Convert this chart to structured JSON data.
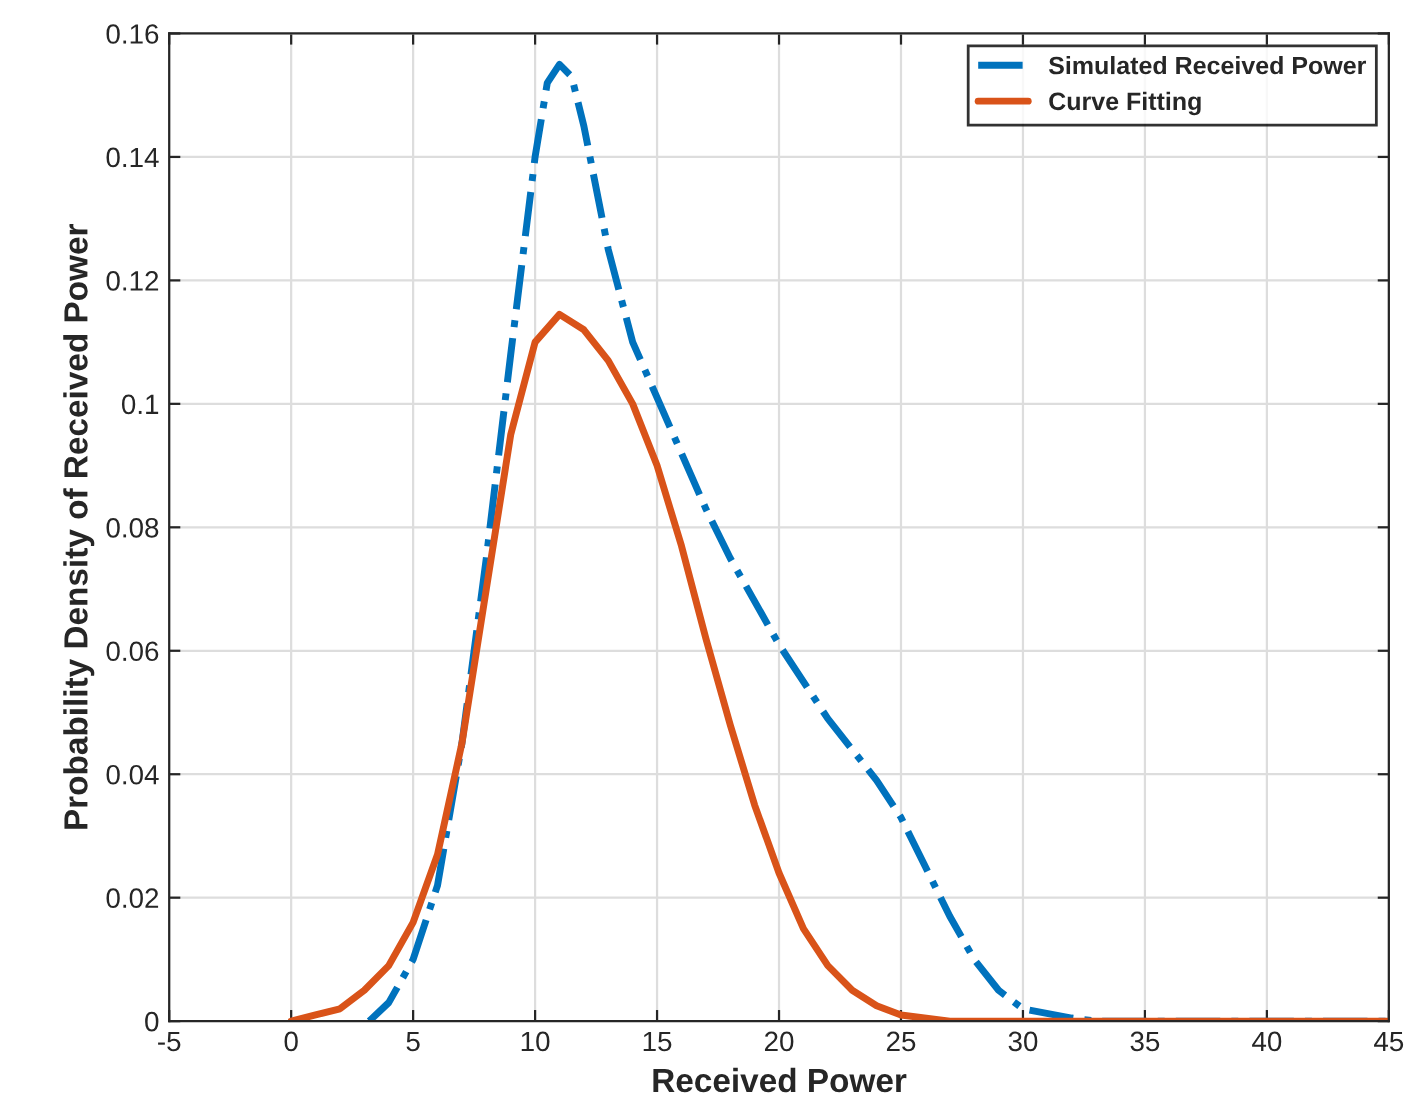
{
  "chart_data": {
    "type": "line",
    "xlabel": "Received Power",
    "ylabel": "Probability Density of Received Power",
    "xlim": [
      -5,
      45
    ],
    "ylim": [
      0,
      0.16
    ],
    "xticks": [
      -5,
      0,
      5,
      10,
      15,
      20,
      25,
      30,
      35,
      40,
      45
    ],
    "yticks": [
      0,
      0.02,
      0.04,
      0.06,
      0.08,
      0.1,
      0.12,
      0.14,
      0.16
    ],
    "grid": true,
    "legend": "top right",
    "marker": "none",
    "series": [
      {
        "name": "Simulated Received Power",
        "color": "#0072bd",
        "line_style": "dashdot",
        "x": [
          3.2,
          4,
          5,
          6,
          7,
          8,
          9,
          10,
          10.5,
          11,
          11.5,
          12,
          13,
          14,
          15,
          16,
          17,
          18,
          19,
          20,
          21,
          22,
          23,
          24,
          25,
          26,
          27,
          28,
          29,
          30,
          32,
          33,
          45
        ],
        "values": [
          0,
          0.003,
          0.01,
          0.022,
          0.045,
          0.075,
          0.108,
          0.14,
          0.152,
          0.155,
          0.153,
          0.145,
          0.125,
          0.11,
          0.101,
          0.092,
          0.083,
          0.075,
          0.068,
          0.061,
          0.055,
          0.049,
          0.044,
          0.039,
          0.033,
          0.025,
          0.017,
          0.01,
          0.005,
          0.002,
          0.0005,
          0,
          0
        ]
      },
      {
        "name": "Curve Fitting",
        "color": "#d95319",
        "line_style": "solid",
        "x": [
          0,
          1,
          2,
          3,
          4,
          5,
          6,
          7,
          8,
          9,
          10,
          11,
          12,
          13,
          14,
          15,
          16,
          17,
          18,
          19,
          20,
          21,
          22,
          23,
          24,
          25,
          27,
          45
        ],
        "values": [
          0,
          0.001,
          0.002,
          0.005,
          0.009,
          0.016,
          0.027,
          0.045,
          0.07,
          0.095,
          0.11,
          0.1145,
          0.112,
          0.107,
          0.1,
          0.09,
          0.077,
          0.062,
          0.048,
          0.035,
          0.024,
          0.015,
          0.009,
          0.005,
          0.0025,
          0.001,
          0,
          0
        ]
      }
    ]
  }
}
